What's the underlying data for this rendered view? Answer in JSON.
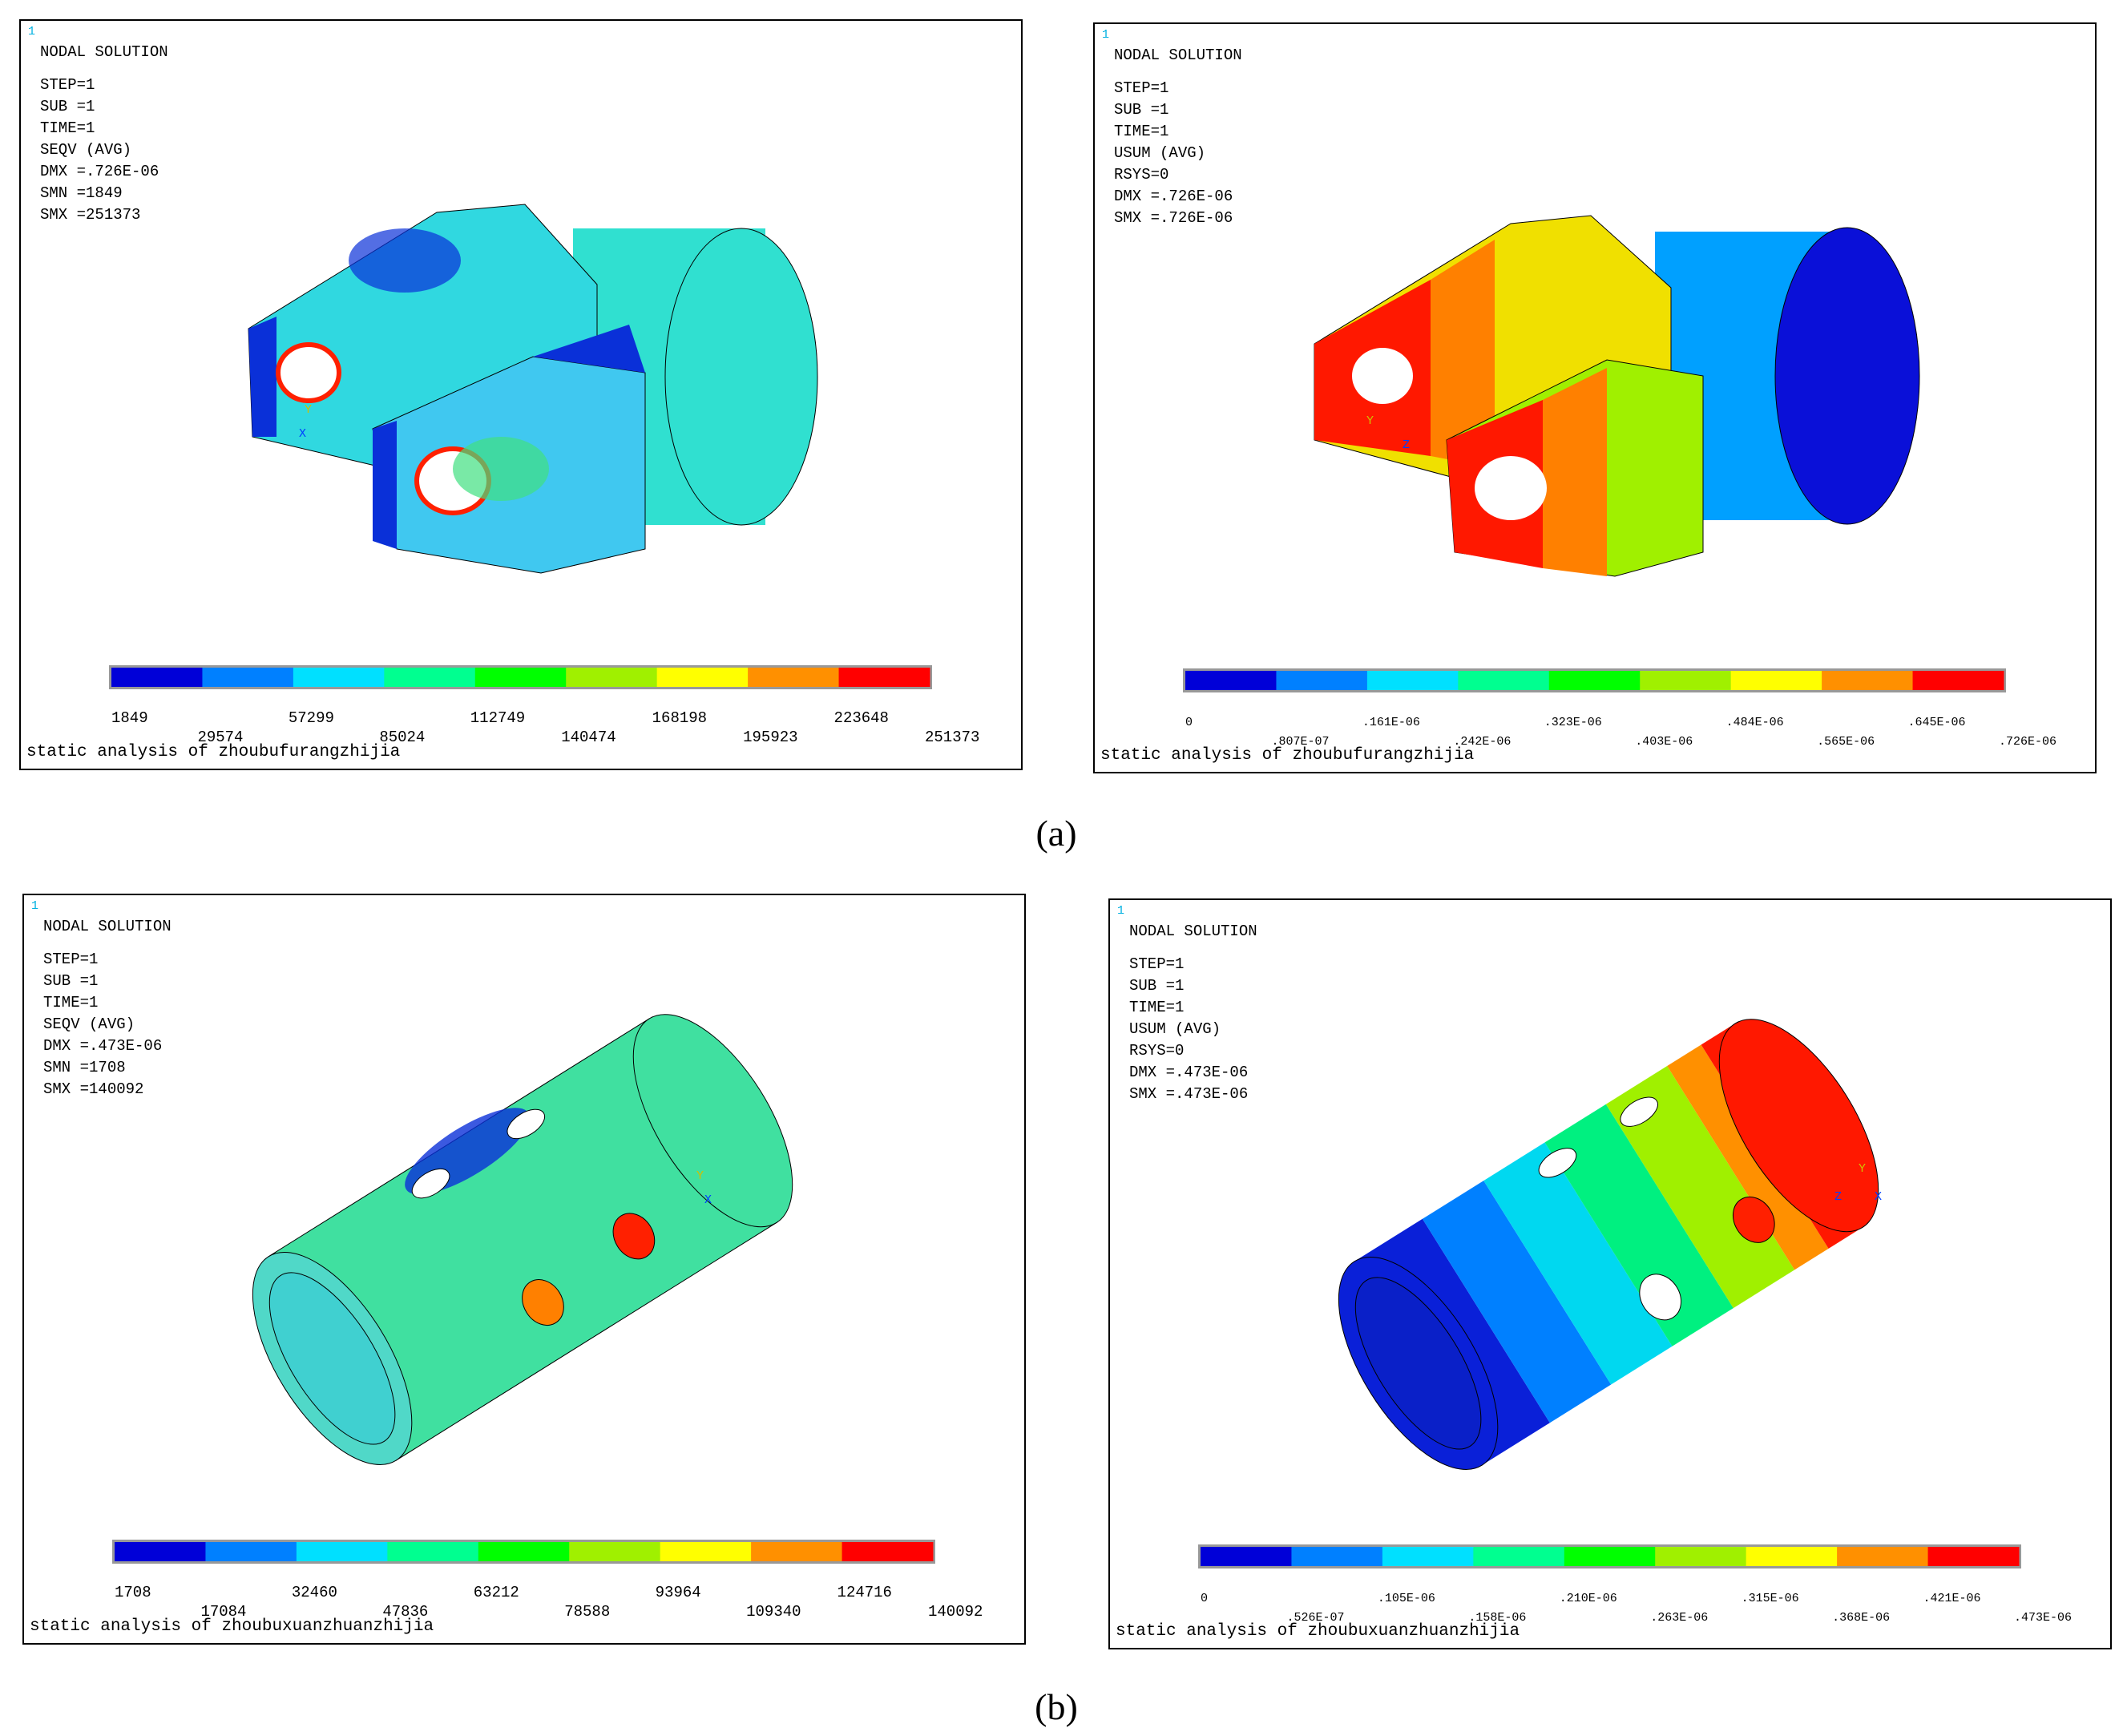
{
  "panels": [
    {
      "frame_number": "1",
      "info": [
        "NODAL SOLUTION",
        "STEP=1",
        "SUB =1",
        "TIME=1",
        "SEQV     (AVG)",
        "DMX =.726E-06",
        "SMN =1849",
        "SMX =251373"
      ],
      "triad": [
        "Y",
        "X"
      ],
      "legend_labels": [
        "1849",
        "29574",
        "57299",
        "85024",
        "112749",
        "140474",
        "168198",
        "195923",
        "223648",
        "251373"
      ],
      "caption": "static analysis of zhoubufurangzhijia"
    },
    {
      "frame_number": "1",
      "info": [
        "NODAL SOLUTION",
        "STEP=1",
        "SUB =1",
        "TIME=1",
        "USUM     (AVG)",
        "RSYS=0",
        "DMX =.726E-06",
        "SMX =.726E-06"
      ],
      "triad": [
        "Y",
        "Z"
      ],
      "legend_labels": [
        "0",
        ".807E-07",
        ".161E-06",
        ".242E-06",
        ".323E-06",
        ".403E-06",
        ".484E-06",
        ".565E-06",
        ".645E-06",
        ".726E-06"
      ],
      "caption": "static analysis of zhoubufurangzhijia"
    },
    {
      "frame_number": "1",
      "info": [
        "NODAL SOLUTION",
        "STEP=1",
        "SUB =1",
        "TIME=1",
        "SEQV     (AVG)",
        "DMX =.473E-06",
        "SMN =1708",
        "SMX =140092"
      ],
      "triad": [
        "Y",
        "X"
      ],
      "legend_labels": [
        "1708",
        "17084",
        "32460",
        "47836",
        "63212",
        "78588",
        "93964",
        "109340",
        "124716",
        "140092"
      ],
      "caption": "static analysis of zhoubuxuanzhuanzhijia"
    },
    {
      "frame_number": "1",
      "info": [
        "NODAL SOLUTION",
        "STEP=1",
        "SUB =1",
        "TIME=1",
        "USUM     (AVG)",
        "RSYS=0",
        "DMX =.473E-06",
        "SMX =.473E-06"
      ],
      "triad": [
        "Y",
        "Z",
        "X"
      ],
      "legend_labels": [
        "0",
        ".526E-07",
        ".105E-06",
        ".158E-06",
        ".210E-06",
        ".263E-06",
        ".315E-06",
        ".368E-06",
        ".421E-06",
        ".473E-06"
      ],
      "caption": "static analysis of zhoubuxuanzhuanzhijia"
    }
  ],
  "legend_colors": [
    "#0000d8",
    "#0080ff",
    "#00e0ff",
    "#00ff90",
    "#00ff00",
    "#a0f000",
    "#ffff00",
    "#ff9000",
    "#ff0000"
  ],
  "subfigure_labels": [
    "(a)",
    "(b)"
  ]
}
